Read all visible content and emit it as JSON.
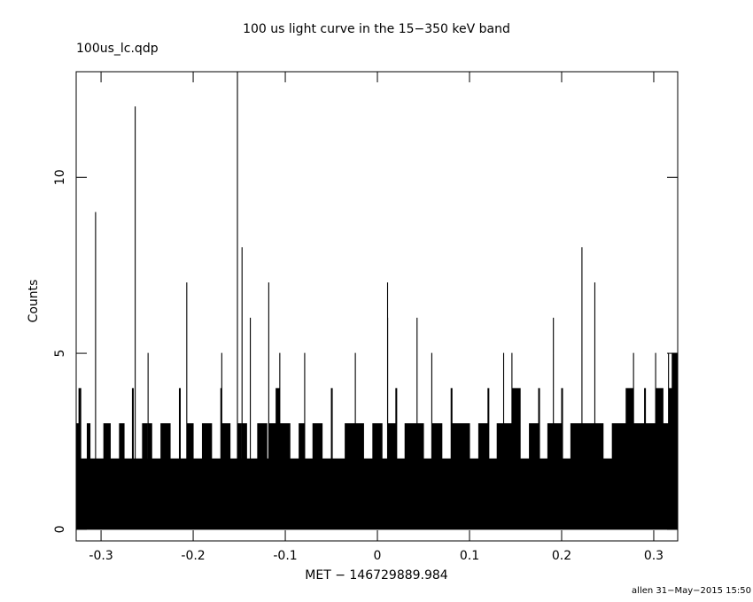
{
  "chart_data": {
    "type": "step",
    "title": "100 us light curve in the 15−350 keV band",
    "subtitle": "100us_lc.qdp",
    "x_label": "MET − 146729889.984",
    "y_label": "Counts",
    "footer": "allen 31−May−2015 15:50",
    "color": "#000000",
    "xlim": [
      -0.327,
      0.326
    ],
    "ylim": [
      -0.33,
      13
    ],
    "xticks": [
      -0.3,
      -0.2,
      -0.1,
      0,
      0.1,
      0.2,
      0.3
    ],
    "yticks": [
      0,
      5,
      10
    ],
    "x": [
      -0.327,
      -0.324,
      -0.322,
      -0.315,
      -0.312,
      -0.306,
      -0.3059,
      -0.297,
      -0.29,
      -0.28,
      -0.275,
      -0.266,
      -0.265,
      -0.263,
      -0.2629,
      -0.255,
      -0.25,
      -0.249,
      -0.2489,
      -0.245,
      -0.235,
      -0.225,
      -0.215,
      -0.214,
      -0.207,
      -0.2069,
      -0.2,
      -0.19,
      -0.18,
      -0.17,
      -0.169,
      -0.1689,
      -0.16,
      -0.152,
      -0.1519,
      -0.148,
      -0.147,
      -0.1469,
      -0.142,
      -0.138,
      -0.1379,
      -0.135,
      -0.1349,
      -0.13,
      -0.12,
      -0.118,
      -0.1179,
      -0.11,
      -0.106,
      -0.1059,
      -0.095,
      -0.085,
      -0.079,
      -0.0789,
      -0.07,
      -0.06,
      -0.05,
      -0.049,
      -0.035,
      -0.024,
      -0.0239,
      -0.015,
      -0.005,
      0.005,
      0.011,
      0.0111,
      0.0112,
      0.02,
      0.021,
      0.03,
      0.043,
      0.0431,
      0.05,
      0.059,
      0.0591,
      0.07,
      0.08,
      0.081,
      0.1,
      0.11,
      0.12,
      0.121,
      0.13,
      0.137,
      0.1371,
      0.146,
      0.1461,
      0.155,
      0.165,
      0.175,
      0.176,
      0.185,
      0.191,
      0.1911,
      0.2,
      0.201,
      0.21,
      0.222,
      0.2221,
      0.236,
      0.2361,
      0.245,
      0.255,
      0.27,
      0.278,
      0.2781,
      0.29,
      0.291,
      0.302,
      0.3021,
      0.31,
      0.316,
      0.3161,
      0.32
    ],
    "values": [
      3,
      4,
      2,
      3,
      2,
      9,
      2,
      3,
      2,
      3,
      2,
      4,
      2,
      12,
      2,
      3,
      2,
      5,
      3,
      2,
      3,
      2,
      4,
      2,
      7,
      3,
      2,
      3,
      2,
      4,
      5,
      3,
      2,
      13,
      3,
      2,
      8,
      3,
      2,
      6,
      2,
      0,
      2,
      3,
      2,
      7,
      3,
      4,
      5,
      3,
      2,
      3,
      5,
      2,
      3,
      2,
      4,
      2,
      3,
      5,
      3,
      2,
      3,
      2,
      7,
      6,
      3,
      4,
      2,
      3,
      6,
      3,
      2,
      5,
      3,
      2,
      4,
      3,
      2,
      3,
      4,
      2,
      3,
      5,
      3,
      5,
      4,
      2,
      3,
      4,
      2,
      3,
      6,
      3,
      4,
      2,
      3,
      8,
      3,
      7,
      3,
      2,
      3,
      4,
      5,
      3,
      4,
      3,
      5,
      4,
      3,
      5,
      4,
      5
    ]
  }
}
